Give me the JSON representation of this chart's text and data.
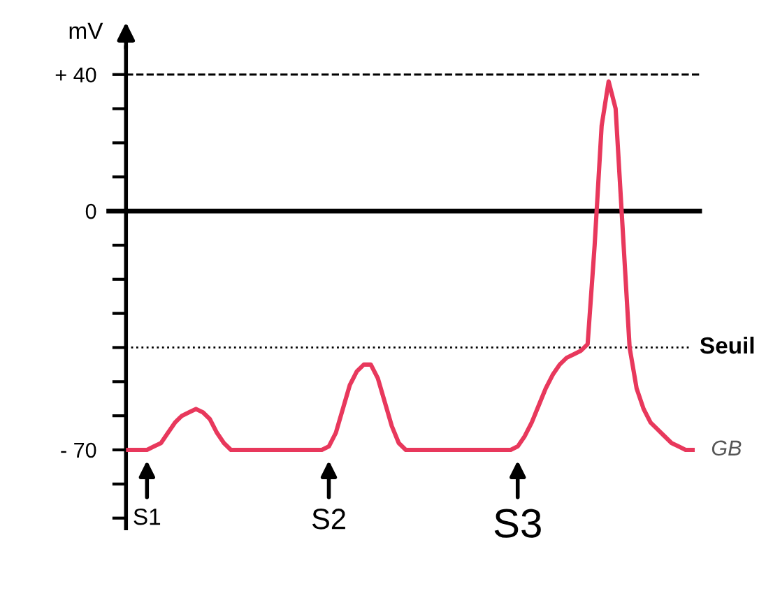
{
  "chart_data": {
    "type": "line",
    "ylabel": "mV",
    "categories": [
      null,
      null,
      null,
      null,
      null,
      null,
      null,
      null,
      null,
      null,
      null,
      null,
      null,
      null,
      null,
      null,
      null,
      null,
      null,
      null,
      null,
      null,
      null,
      null,
      null,
      null,
      null,
      null,
      null,
      null,
      null,
      null,
      null,
      null,
      null,
      null,
      null,
      null,
      null,
      null,
      null,
      null,
      null,
      null,
      null,
      null,
      null,
      null,
      null,
      null,
      null,
      null,
      null,
      null,
      null,
      null,
      null,
      null,
      null,
      null,
      null,
      null,
      null,
      null,
      null,
      null,
      null,
      null,
      null,
      null,
      null,
      null,
      null,
      null,
      null,
      null,
      null,
      null,
      null,
      null,
      null,
      null
    ],
    "series": [
      {
        "color": "#e8385c",
        "values": [
          -70,
          -70,
          -70,
          -70,
          -69,
          -68,
          -65,
          -62,
          -60,
          -59,
          -58,
          -59,
          -61,
          -65,
          -68,
          -70,
          -70,
          -70,
          -70,
          -70,
          -70,
          -70,
          -70,
          -70,
          -70,
          -70,
          -70,
          -70,
          -70,
          -69,
          -65,
          -58,
          -51,
          -47,
          -45,
          -45,
          -49,
          -56,
          -63,
          -68,
          -70,
          -70,
          -70,
          -70,
          -70,
          -70,
          -70,
          -70,
          -70,
          -70,
          -70,
          -70,
          -70,
          -70,
          -70,
          -70,
          -69,
          -66,
          -62,
          -57,
          -52,
          -48,
          -45,
          -43,
          -42,
          -41,
          -39,
          -10,
          25,
          38,
          30,
          -5,
          -40,
          -52,
          -58,
          -62,
          -64,
          -66,
          -68,
          -69,
          -70,
          -70
        ]
      }
    ],
    "ylim": [
      -93,
      48
    ],
    "yticks": [
      {
        "value": 40,
        "label": "+ 40"
      },
      {
        "value": 30,
        "label": null
      },
      {
        "value": 20,
        "label": null
      },
      {
        "value": 10,
        "label": null
      },
      0,
      {
        "value": -10,
        "label": null
      },
      {
        "value": -20,
        "label": null
      },
      {
        "value": -30,
        "label": null
      },
      {
        "value": -40,
        "label": null
      },
      {
        "value": -50,
        "label": null
      },
      {
        "value": -60,
        "label": null
      },
      {
        "value": -70,
        "label": "- 70"
      },
      {
        "value": -80,
        "label": null
      },
      {
        "value": -90,
        "label": null
      }
    ],
    "ref_lines": [
      {
        "axis": "y",
        "value": 40,
        "color": "#000000",
        "line_style": "dashed"
      },
      {
        "axis": "y",
        "value": 0,
        "color": "#000000",
        "line_style": "solid"
      },
      {
        "axis": "y",
        "value": -40,
        "label": "Seuil",
        "color": "#000000",
        "line_style": "dotted"
      }
    ],
    "annotations": [
      "S1",
      "S2",
      "S3",
      "GB"
    ],
    "grid": false,
    "marker": "none",
    "line_style": "solid"
  }
}
